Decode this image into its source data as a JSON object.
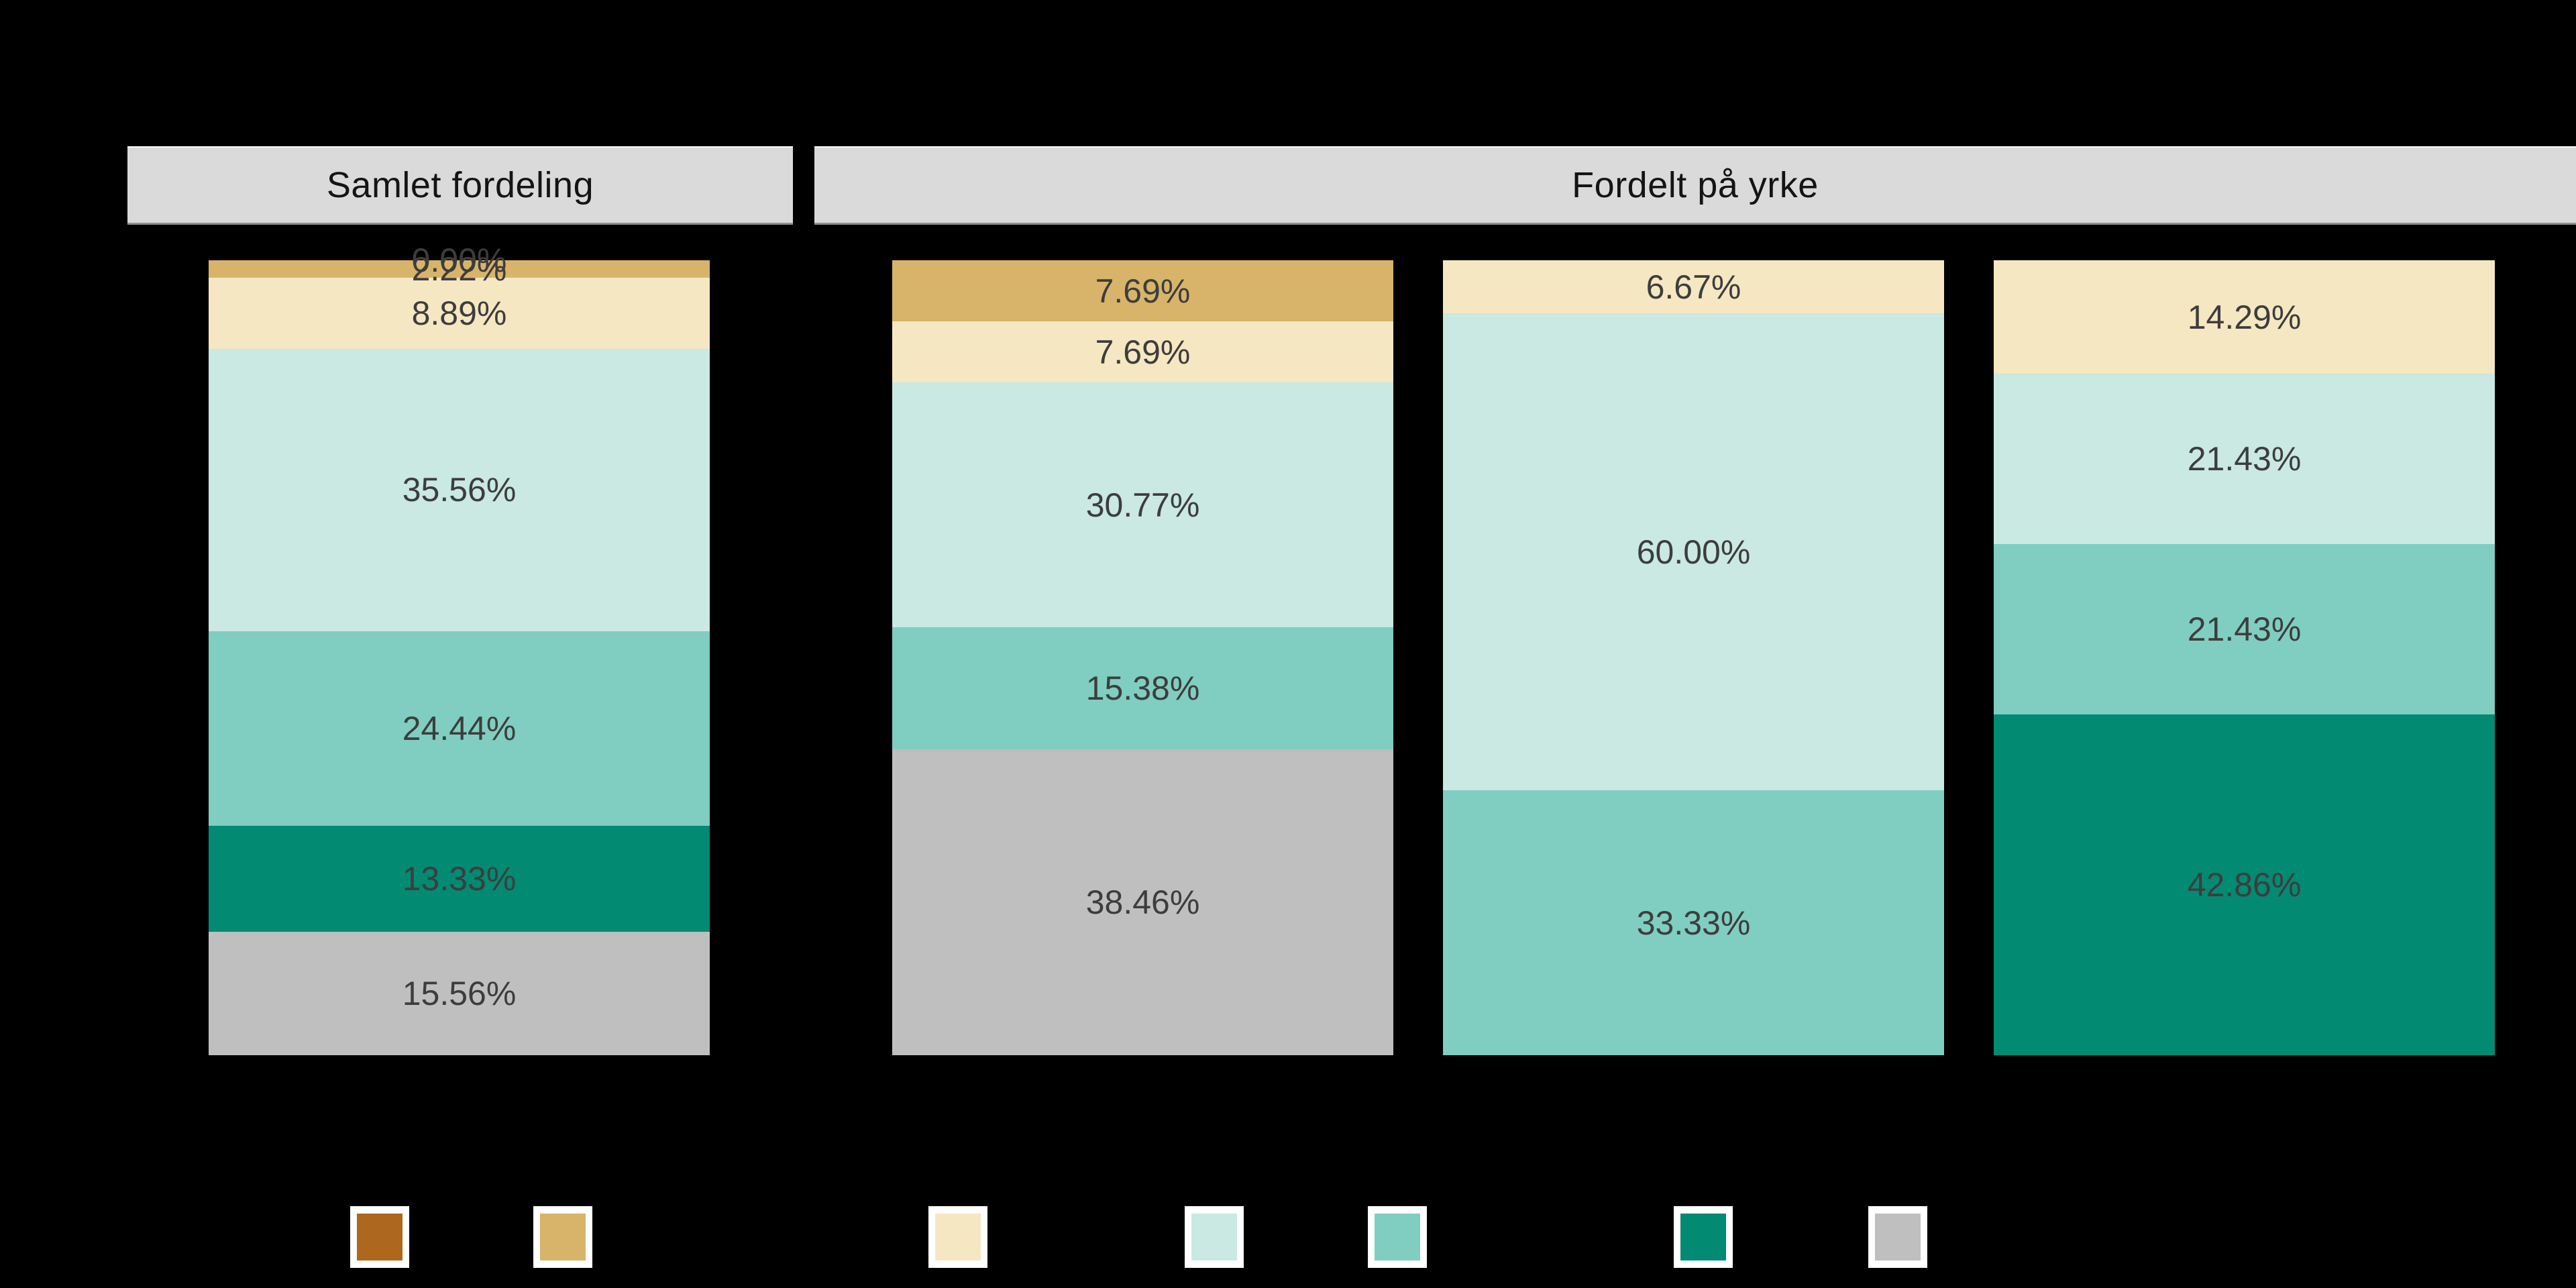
{
  "background": "#000000",
  "strip": {
    "bg": "#DADADA",
    "text_color": "#141414"
  },
  "label_color": "#3D3D3D",
  "palette": {
    "brown": "#AD671F",
    "gold": "#D8B46A",
    "cream": "#F5E7C1",
    "pale_teal": "#C9E9E2",
    "medium_teal": "#7FCEC1",
    "dark_teal": "#028A73",
    "grey": "#BFBFBF"
  },
  "chart_data": {
    "type": "bar",
    "stacked": true,
    "orientation": "vertical",
    "value_unit": "percent_of_column",
    "ylim": [
      0,
      100
    ],
    "grid": false,
    "facets": [
      {
        "title": "Samlet fordeling",
        "bars": [
          {
            "segments": [
              {
                "color": "brown",
                "value": 0.0,
                "label": "0.00%",
                "clipped_label": true
              },
              {
                "color": "gold",
                "value": 2.22,
                "label": "2.22%"
              },
              {
                "color": "cream",
                "value": 8.89,
                "label": "8.89%"
              },
              {
                "color": "pale_teal",
                "value": 35.56,
                "label": "35.56%"
              },
              {
                "color": "medium_teal",
                "value": 24.44,
                "label": "24.44%"
              },
              {
                "color": "dark_teal",
                "value": 13.33,
                "label": "13.33%"
              },
              {
                "color": "grey",
                "value": 15.56,
                "label": "15.56%"
              }
            ]
          }
        ]
      },
      {
        "title": "Fordelt på yrke",
        "bars": [
          {
            "segments": [
              {
                "color": "gold",
                "value": 7.69,
                "label": "7.69%"
              },
              {
                "color": "cream",
                "value": 7.69,
                "label": "7.69%"
              },
              {
                "color": "pale_teal",
                "value": 30.77,
                "label": "30.77%"
              },
              {
                "color": "medium_teal",
                "value": 15.38,
                "label": "15.38%"
              },
              {
                "color": "grey",
                "value": 38.46,
                "label": "38.46%"
              }
            ]
          },
          {
            "segments": [
              {
                "color": "cream",
                "value": 6.67,
                "label": "6.67%"
              },
              {
                "color": "pale_teal",
                "value": 60.0,
                "label": "60.00%"
              },
              {
                "color": "medium_teal",
                "value": 33.33,
                "label": "33.33%"
              }
            ]
          },
          {
            "segments": [
              {
                "color": "cream",
                "value": 14.29,
                "label": "14.29%"
              },
              {
                "color": "pale_teal",
                "value": 21.43,
                "label": "21.43%"
              },
              {
                "color": "medium_teal",
                "value": 21.43,
                "label": "21.43%"
              },
              {
                "color": "dark_teal",
                "value": 42.86,
                "label": "42.86%"
              }
            ]
          }
        ]
      }
    ],
    "legend_keys": [
      "brown",
      "gold",
      "cream",
      "pale_teal",
      "medium_teal",
      "dark_teal",
      "grey"
    ],
    "legend_labels_visible": false
  }
}
